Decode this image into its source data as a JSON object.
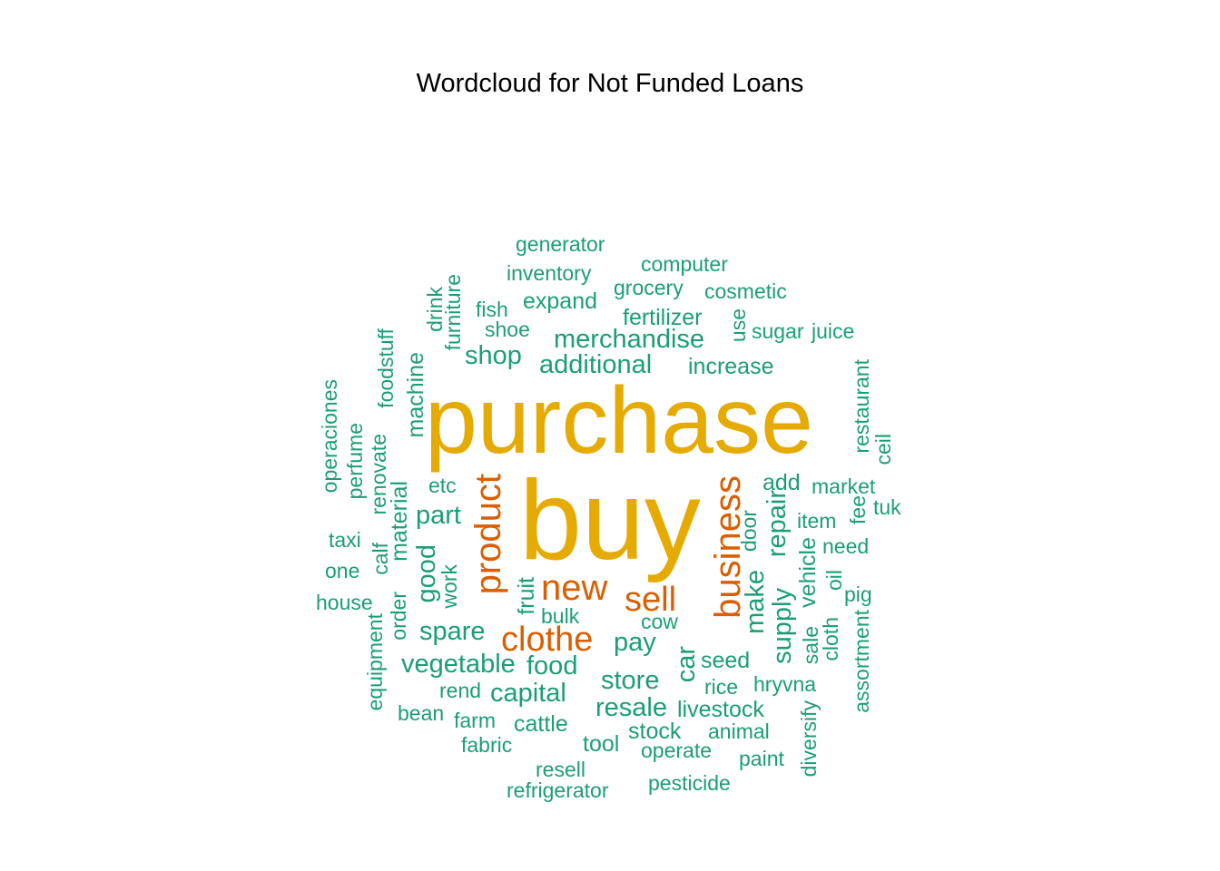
{
  "chart_data": {
    "type": "wordcloud",
    "title": "Wordcloud for Not Funded Loans",
    "colors": {
      "gold": "#E6AB02",
      "orange": "#D95F02",
      "teal": "#1B9E77"
    },
    "words": [
      {
        "text": "purchase",
        "tier": 1,
        "color": "gold",
        "rotated": false
      },
      {
        "text": "buy",
        "tier": 1,
        "color": "gold",
        "rotated": false
      },
      {
        "text": "product",
        "tier": 2,
        "color": "orange",
        "rotated": true
      },
      {
        "text": "business",
        "tier": 2,
        "color": "orange",
        "rotated": true
      },
      {
        "text": "new",
        "tier": 2,
        "color": "orange",
        "rotated": false
      },
      {
        "text": "sell",
        "tier": 2,
        "color": "orange",
        "rotated": false
      },
      {
        "text": "clothe",
        "tier": 2,
        "color": "orange",
        "rotated": false
      },
      {
        "text": "additional",
        "tier": 3,
        "color": "teal",
        "rotated": false
      },
      {
        "text": "pay",
        "tier": 3,
        "color": "teal",
        "rotated": false
      },
      {
        "text": "merchandise",
        "tier": 3,
        "color": "teal",
        "rotated": false
      },
      {
        "text": "shop",
        "tier": 3,
        "color": "teal",
        "rotated": false
      },
      {
        "text": "part",
        "tier": 3,
        "color": "teal",
        "rotated": false
      },
      {
        "text": "spare",
        "tier": 3,
        "color": "teal",
        "rotated": false
      },
      {
        "text": "vegetable",
        "tier": 3,
        "color": "teal",
        "rotated": false
      },
      {
        "text": "food",
        "tier": 3,
        "color": "teal",
        "rotated": false
      },
      {
        "text": "capital",
        "tier": 3,
        "color": "teal",
        "rotated": false
      },
      {
        "text": "store",
        "tier": 3,
        "color": "teal",
        "rotated": false
      },
      {
        "text": "resale",
        "tier": 3,
        "color": "teal",
        "rotated": false
      },
      {
        "text": "make",
        "tier": 3,
        "color": "teal",
        "rotated": true
      },
      {
        "text": "repair",
        "tier": 3,
        "color": "teal",
        "rotated": true
      },
      {
        "text": "good",
        "tier": 3,
        "color": "teal",
        "rotated": true
      },
      {
        "text": "car",
        "tier": 3,
        "color": "teal",
        "rotated": true
      },
      {
        "text": "supply",
        "tier": 3,
        "color": "teal",
        "rotated": true
      },
      {
        "text": "expand",
        "tier": 4,
        "color": "teal",
        "rotated": false
      },
      {
        "text": "fertilizer",
        "tier": 4,
        "color": "teal",
        "rotated": false
      },
      {
        "text": "increase",
        "tier": 4,
        "color": "teal",
        "rotated": false
      },
      {
        "text": "add",
        "tier": 4,
        "color": "teal",
        "rotated": false
      },
      {
        "text": "seed",
        "tier": 4,
        "color": "teal",
        "rotated": false
      },
      {
        "text": "stock",
        "tier": 4,
        "color": "teal",
        "rotated": false
      },
      {
        "text": "livestock",
        "tier": 4,
        "color": "teal",
        "rotated": false
      },
      {
        "text": "cattle",
        "tier": 4,
        "color": "teal",
        "rotated": false
      },
      {
        "text": "tool",
        "tier": 4,
        "color": "teal",
        "rotated": false
      },
      {
        "text": "machine",
        "tier": 4,
        "color": "teal",
        "rotated": true
      },
      {
        "text": "material",
        "tier": 4,
        "color": "teal",
        "rotated": true
      },
      {
        "text": "fruit",
        "tier": 4,
        "color": "teal",
        "rotated": true
      },
      {
        "text": "vehicle",
        "tier": 4,
        "color": "teal",
        "rotated": true
      },
      {
        "text": "generator",
        "tier": 5,
        "color": "teal",
        "rotated": false
      },
      {
        "text": "inventory",
        "tier": 5,
        "color": "teal",
        "rotated": false
      },
      {
        "text": "computer",
        "tier": 5,
        "color": "teal",
        "rotated": false
      },
      {
        "text": "grocery",
        "tier": 5,
        "color": "teal",
        "rotated": false
      },
      {
        "text": "cosmetic",
        "tier": 5,
        "color": "teal",
        "rotated": false
      },
      {
        "text": "fish",
        "tier": 5,
        "color": "teal",
        "rotated": false
      },
      {
        "text": "shoe",
        "tier": 5,
        "color": "teal",
        "rotated": false
      },
      {
        "text": "sugar",
        "tier": 5,
        "color": "teal",
        "rotated": false
      },
      {
        "text": "juice",
        "tier": 5,
        "color": "teal",
        "rotated": false
      },
      {
        "text": "etc",
        "tier": 5,
        "color": "teal",
        "rotated": false
      },
      {
        "text": "market",
        "tier": 5,
        "color": "teal",
        "rotated": false
      },
      {
        "text": "tuk",
        "tier": 5,
        "color": "teal",
        "rotated": false
      },
      {
        "text": "item",
        "tier": 5,
        "color": "teal",
        "rotated": false
      },
      {
        "text": "need",
        "tier": 5,
        "color": "teal",
        "rotated": false
      },
      {
        "text": "pig",
        "tier": 5,
        "color": "teal",
        "rotated": false
      },
      {
        "text": "taxi",
        "tier": 5,
        "color": "teal",
        "rotated": false
      },
      {
        "text": "one",
        "tier": 5,
        "color": "teal",
        "rotated": false
      },
      {
        "text": "house",
        "tier": 5,
        "color": "teal",
        "rotated": false
      },
      {
        "text": "bulk",
        "tier": 5,
        "color": "teal",
        "rotated": false
      },
      {
        "text": "cow",
        "tier": 5,
        "color": "teal",
        "rotated": false
      },
      {
        "text": "rice",
        "tier": 5,
        "color": "teal",
        "rotated": false
      },
      {
        "text": "hryvna",
        "tier": 5,
        "color": "teal",
        "rotated": false
      },
      {
        "text": "rend",
        "tier": 5,
        "color": "teal",
        "rotated": false
      },
      {
        "text": "bean",
        "tier": 5,
        "color": "teal",
        "rotated": false
      },
      {
        "text": "farm",
        "tier": 5,
        "color": "teal",
        "rotated": false
      },
      {
        "text": "fabric",
        "tier": 5,
        "color": "teal",
        "rotated": false
      },
      {
        "text": "animal",
        "tier": 5,
        "color": "teal",
        "rotated": false
      },
      {
        "text": "operate",
        "tier": 5,
        "color": "teal",
        "rotated": false
      },
      {
        "text": "paint",
        "tier": 5,
        "color": "teal",
        "rotated": false
      },
      {
        "text": "resell",
        "tier": 5,
        "color": "teal",
        "rotated": false
      },
      {
        "text": "refrigerator",
        "tier": 5,
        "color": "teal",
        "rotated": false
      },
      {
        "text": "pesticide",
        "tier": 5,
        "color": "teal",
        "rotated": false
      },
      {
        "text": "drink",
        "tier": 5,
        "color": "teal",
        "rotated": true
      },
      {
        "text": "furniture",
        "tier": 5,
        "color": "teal",
        "rotated": true
      },
      {
        "text": "foodstuff",
        "tier": 5,
        "color": "teal",
        "rotated": true
      },
      {
        "text": "use",
        "tier": 5,
        "color": "teal",
        "rotated": true
      },
      {
        "text": "operaciones",
        "tier": 5,
        "color": "teal",
        "rotated": true
      },
      {
        "text": "perfume",
        "tier": 5,
        "color": "teal",
        "rotated": true
      },
      {
        "text": "renovate",
        "tier": 5,
        "color": "teal",
        "rotated": true
      },
      {
        "text": "calf",
        "tier": 5,
        "color": "teal",
        "rotated": true
      },
      {
        "text": "work",
        "tier": 5,
        "color": "teal",
        "rotated": true
      },
      {
        "text": "order",
        "tier": 5,
        "color": "teal",
        "rotated": true
      },
      {
        "text": "equipment",
        "tier": 5,
        "color": "teal",
        "rotated": true
      },
      {
        "text": "restaurant",
        "tier": 5,
        "color": "teal",
        "rotated": true
      },
      {
        "text": "ceil",
        "tier": 5,
        "color": "teal",
        "rotated": true
      },
      {
        "text": "fee",
        "tier": 5,
        "color": "teal",
        "rotated": true
      },
      {
        "text": "door",
        "tier": 5,
        "color": "teal",
        "rotated": true
      },
      {
        "text": "oil",
        "tier": 5,
        "color": "teal",
        "rotated": true
      },
      {
        "text": "sale",
        "tier": 5,
        "color": "teal",
        "rotated": true
      },
      {
        "text": "cloth",
        "tier": 5,
        "color": "teal",
        "rotated": true
      },
      {
        "text": "assortment",
        "tier": 5,
        "color": "teal",
        "rotated": true
      },
      {
        "text": "diversify",
        "tier": 5,
        "color": "teal",
        "rotated": true
      }
    ]
  }
}
